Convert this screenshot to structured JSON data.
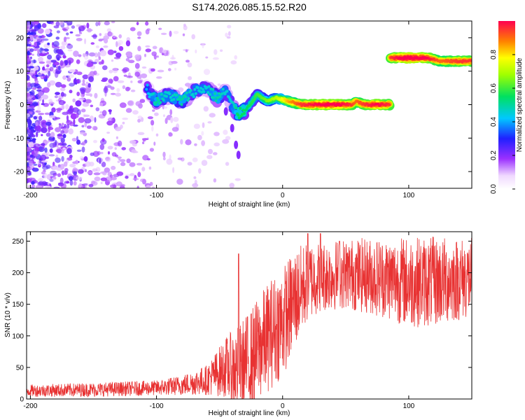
{
  "title": "S174.2026.085.15.52.R20",
  "colors": {
    "snr_line": "#e83232",
    "scatter": "#8a2be2",
    "axis": "#000000"
  },
  "chart_data": [
    {
      "type": "heatmap",
      "name": "spectrogram",
      "xlabel": "Height of straight line (km)",
      "ylabel": "Frequency (Hz)",
      "xlim": [
        -203,
        150
      ],
      "ylim": [
        -25,
        25
      ],
      "xticks": [
        -200,
        -100,
        0,
        100
      ],
      "yticks": [
        -20,
        -10,
        0,
        10,
        20
      ],
      "colorbar": {
        "label": "Normalized spectral amplitude",
        "range": [
          0,
          1
        ],
        "ticks": [
          "0.0",
          "0.2",
          "0.4",
          "0.6",
          "0.8"
        ],
        "tick_values": [
          0,
          0.2,
          0.4,
          0.6,
          0.8
        ]
      },
      "track": [
        {
          "x": -108,
          "y": 5,
          "a": 0.3
        },
        {
          "x": -100,
          "y": 1,
          "a": 0.4
        },
        {
          "x": -90,
          "y": 3,
          "a": 0.35
        },
        {
          "x": -80,
          "y": 1,
          "a": 0.4
        },
        {
          "x": -70,
          "y": 4,
          "a": 0.35
        },
        {
          "x": -60,
          "y": 5,
          "a": 0.35
        },
        {
          "x": -52,
          "y": 2,
          "a": 0.4
        },
        {
          "x": -45,
          "y": 4,
          "a": 0.35
        },
        {
          "x": -40,
          "y": 0,
          "a": 0.35
        },
        {
          "x": -35,
          "y": -3,
          "a": 0.45
        },
        {
          "x": -28,
          "y": -1,
          "a": 0.45
        },
        {
          "x": -20,
          "y": 3,
          "a": 0.5
        },
        {
          "x": -12,
          "y": 1,
          "a": 0.55
        },
        {
          "x": -5,
          "y": 2,
          "a": 0.6
        },
        {
          "x": 5,
          "y": 1,
          "a": 0.75
        },
        {
          "x": 15,
          "y": 0,
          "a": 0.85
        },
        {
          "x": 30,
          "y": 0,
          "a": 0.9
        },
        {
          "x": 45,
          "y": 0,
          "a": 0.9
        },
        {
          "x": 55,
          "y": 0,
          "a": 0.85
        },
        {
          "x": 58,
          "y": 1,
          "a": 0.8
        },
        {
          "x": 65,
          "y": 0,
          "a": 0.85
        },
        {
          "x": 75,
          "y": 0,
          "a": 0.9
        },
        {
          "x": 85,
          "y": 0,
          "a": 0.85
        },
        {
          "x": 86,
          "y": 14,
          "a": 0.85
        },
        {
          "x": 100,
          "y": 14,
          "a": 0.95
        },
        {
          "x": 115,
          "y": 14,
          "a": 0.9
        },
        {
          "x": 125,
          "y": 13,
          "a": 0.8
        },
        {
          "x": 140,
          "y": 13,
          "a": 0.85
        },
        {
          "x": 150,
          "y": 13,
          "a": 0.85
        }
      ],
      "track_segments": [
        {
          "from": -108,
          "to": -30,
          "a": 0.3
        },
        {
          "from": -30,
          "to": 85,
          "a": 0.7
        },
        {
          "from": 86,
          "to": 150,
          "a": 0.85
        }
      ],
      "tail": [
        {
          "x": -45,
          "y": -2
        },
        {
          "x": -40,
          "y": -7
        },
        {
          "x": -37,
          "y": -12
        },
        {
          "x": -35,
          "y": -15
        }
      ]
    },
    {
      "type": "line",
      "name": "snr",
      "xlabel": "Height of straight line (km)",
      "ylabel": "SNR (10 * v/v)",
      "xlim": [
        -203,
        150
      ],
      "ylim": [
        0,
        265
      ],
      "xticks": [
        -200,
        -100,
        0,
        100
      ],
      "yticks": [
        0,
        50,
        100,
        150,
        200,
        250
      ],
      "envelope": {
        "x": [
          -203,
          -150,
          -100,
          -80,
          -60,
          -45,
          -35,
          -25,
          -10,
          0,
          10,
          20,
          30,
          50,
          80,
          100,
          120,
          150
        ],
        "mean": [
          15,
          17,
          20,
          25,
          35,
          60,
          60,
          80,
          120,
          140,
          175,
          200,
          205,
          210,
          205,
          200,
          200,
          205
        ],
        "spread": [
          12,
          14,
          15,
          20,
          30,
          60,
          90,
          100,
          110,
          110,
          100,
          80,
          70,
          70,
          80,
          90,
          90,
          80
        ]
      },
      "spikes": [
        {
          "x": -35,
          "y": 230
        },
        {
          "x": 20,
          "y": 262
        },
        {
          "x": 30,
          "y": 262
        },
        {
          "x": 45,
          "y": 250
        }
      ]
    }
  ]
}
